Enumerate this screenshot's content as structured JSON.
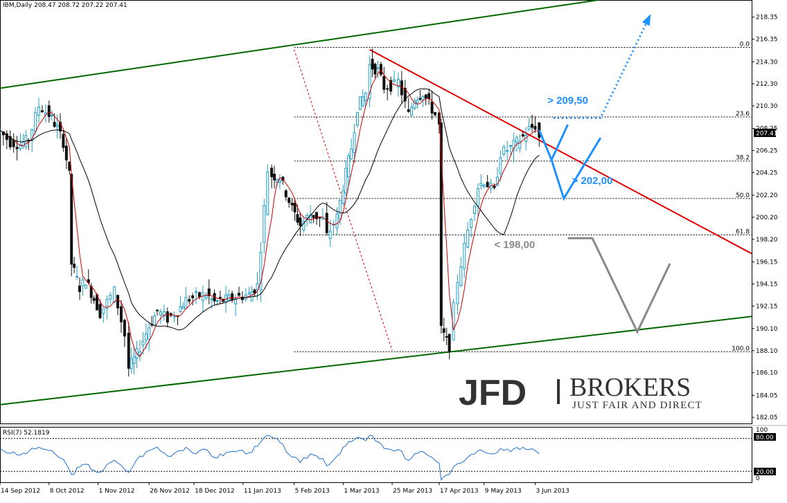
{
  "chart_data": [
    {
      "type": "candlestick",
      "header": "IBM,Daily  208.47 208.72 207.22 207.41",
      "symbol": "IBM",
      "timeframe": "Daily",
      "ohlc_header": {
        "open": 208.47,
        "high": 208.72,
        "low": 207.22,
        "close": 207.41
      },
      "last_price_label": "207.41",
      "last_price": 207.41,
      "ylim": [
        181.5,
        219.9
      ],
      "y_ticks": [
        "218.35",
        "216.35",
        "214.30",
        "212.30",
        "210.30",
        "208.25",
        "206.25",
        "204.25",
        "202.20",
        "200.20",
        "198.20",
        "196.15",
        "194.15",
        "192.15",
        "190.10",
        "188.10",
        "186.10",
        "184.05",
        "182.05"
      ],
      "x_tick_labels": [
        {
          "date": "2012-09-14",
          "label": "14 Sep 2012"
        },
        {
          "date": "2012-10-08",
          "label": "8 Oct 2012"
        },
        {
          "date": "2012-11-01",
          "label": "1 Nov 2012"
        },
        {
          "date": "2012-11-26",
          "label": "26 Nov 2012"
        },
        {
          "date": "2012-12-18",
          "label": "18 Dec 2012"
        },
        {
          "date": "2013-01-11",
          "label": "11 Jan 2013"
        },
        {
          "date": "2013-02-05",
          "label": "5 Feb 2013"
        },
        {
          "date": "2013-03-01",
          "label": "1 Mar 2013"
        },
        {
          "date": "2013-03-25",
          "label": "25 Mar 2013"
        },
        {
          "date": "2013-04-17",
          "label": "17 Apr 2013"
        },
        {
          "date": "2013-05-09",
          "label": "9 May 2013"
        },
        {
          "date": "2013-06-03",
          "label": "3 Jun 2013"
        }
      ],
      "x_range": {
        "start": "2012-09-14",
        "end": "2013-09-17"
      },
      "close_series": [
        [
          "2012-09-14",
          208.0
        ],
        [
          "2012-09-19",
          207.0
        ],
        [
          "2012-09-24",
          206.8
        ],
        [
          "2012-09-28",
          207.3
        ],
        [
          "2012-10-03",
          210.3
        ],
        [
          "2012-10-08",
          209.5
        ],
        [
          "2012-10-12",
          208.3
        ],
        [
          "2012-10-15",
          207.0
        ],
        [
          "2012-10-18",
          204.0
        ],
        [
          "2012-10-19",
          196.0
        ],
        [
          "2012-10-23",
          193.8
        ],
        [
          "2012-10-26",
          194.5
        ],
        [
          "2012-10-30",
          192.8
        ],
        [
          "2012-11-02",
          191.5
        ],
        [
          "2012-11-07",
          193.0
        ],
        [
          "2012-11-09",
          193.5
        ],
        [
          "2012-11-14",
          189.5
        ],
        [
          "2012-11-16",
          186.5
        ],
        [
          "2012-11-20",
          187.8
        ],
        [
          "2012-11-26",
          190.3
        ],
        [
          "2012-11-30",
          191.7
        ],
        [
          "2012-12-05",
          191.0
        ],
        [
          "2012-12-10",
          191.7
        ],
        [
          "2012-12-14",
          192.7
        ],
        [
          "2012-12-19",
          193.0
        ],
        [
          "2012-12-24",
          193.2
        ],
        [
          "2012-12-28",
          192.5
        ],
        [
          "2013-01-04",
          192.8
        ],
        [
          "2013-01-09",
          193.0
        ],
        [
          "2013-01-14",
          193.2
        ],
        [
          "2013-01-18",
          194.0
        ],
        [
          "2013-01-23",
          204.5
        ],
        [
          "2013-01-25",
          204.0
        ],
        [
          "2013-01-29",
          203.8
        ],
        [
          "2013-02-04",
          201.0
        ],
        [
          "2013-02-08",
          199.5
        ],
        [
          "2013-02-13",
          200.5
        ],
        [
          "2013-02-19",
          200.0
        ],
        [
          "2013-02-21",
          198.5
        ],
        [
          "2013-02-26",
          200.2
        ],
        [
          "2013-03-01",
          203.0
        ],
        [
          "2013-03-05",
          206.5
        ],
        [
          "2013-03-08",
          210.2
        ],
        [
          "2013-03-12",
          211.5
        ],
        [
          "2013-03-14",
          214.0
        ],
        [
          "2013-03-18",
          213.5
        ],
        [
          "2013-03-21",
          212.0
        ],
        [
          "2013-03-26",
          212.2
        ],
        [
          "2013-03-28",
          212.5
        ],
        [
          "2013-04-02",
          209.5
        ],
        [
          "2013-04-05",
          211.0
        ],
        [
          "2013-04-09",
          211.5
        ],
        [
          "2013-04-12",
          210.5
        ],
        [
          "2013-04-15",
          209.5
        ],
        [
          "2013-04-17",
          208.5
        ],
        [
          "2013-04-18",
          190.0
        ],
        [
          "2013-04-22",
          188.5
        ],
        [
          "2013-04-24",
          192.0
        ],
        [
          "2013-04-26",
          194.5
        ],
        [
          "2013-05-01",
          199.0
        ],
        [
          "2013-05-06",
          203.0
        ],
        [
          "2013-05-09",
          203.5
        ],
        [
          "2013-05-14",
          202.5
        ],
        [
          "2013-05-17",
          206.0
        ],
        [
          "2013-05-22",
          206.5
        ],
        [
          "2013-05-28",
          207.5
        ],
        [
          "2013-05-31",
          208.2
        ],
        [
          "2013-06-03",
          208.5
        ],
        [
          "2013-06-05",
          207.4
        ]
      ],
      "ma_fast_name": "",
      "ma_slow_name": "",
      "trendlines": [
        {
          "name": "upper-channel",
          "color": "#006600",
          "p1": [
            "2012-09-14",
            211.9
          ],
          "p2": [
            "2013-07-04",
            219.9
          ]
        },
        {
          "name": "lower-channel",
          "color": "#006600",
          "p1": [
            "2012-09-14",
            183.2
          ],
          "p2": [
            "2013-09-17",
            191.2
          ]
        },
        {
          "name": "resistance-trendline",
          "color": "#e00000",
          "p1": [
            "2013-03-14",
            215.4
          ],
          "p2": [
            "2013-09-17",
            196.9
          ]
        },
        {
          "name": "fib-diagonal",
          "color": "#e00000",
          "dashed": true,
          "p1": [
            "2013-02-05",
            215.4
          ],
          "p2": [
            "2013-03-25",
            188.1
          ]
        }
      ],
      "fibonacci": {
        "start_date": "2013-02-05",
        "levels": [
          {
            "label": "0.0",
            "price": 215.6
          },
          {
            "label": "23.6",
            "price": 209.3
          },
          {
            "label": "38.2",
            "price": 205.3
          },
          {
            "label": "50.0",
            "price": 201.9
          },
          {
            "label": "61.8",
            "price": 198.6
          },
          {
            "label": "100.0",
            "price": 188.0
          }
        ]
      },
      "annotations": [
        {
          "text": "> 209,50",
          "color": "#1e90ff",
          "anchor": [
            "2013-06-09",
            210.5
          ]
        },
        {
          "text": "> 202,00",
          "color": "#1e90ff",
          "anchor": [
            "2013-06-21",
            203.2
          ]
        },
        {
          "text": "< 198,00",
          "color": "#888888",
          "anchor": [
            "2013-05-14",
            197.4
          ]
        }
      ],
      "scenario_paths": [
        {
          "name": "bull-v-path",
          "color": "#1e90ff",
          "dashed": false,
          "points": [
            [
              "2013-06-05",
              208.1
            ],
            [
              "2013-06-11",
              205.4
            ],
            [
              "2013-06-19",
              208.6
            ]
          ]
        },
        {
          "name": "deep-v-path",
          "color": "#1e90ff",
          "dashed": false,
          "points": [
            [
              "2013-06-11",
              205.4
            ],
            [
              "2013-06-17",
              201.9
            ],
            [
              "2013-07-05",
              207.4
            ]
          ]
        },
        {
          "name": "breakout-target-path",
          "color": "#1e90ff",
          "dashed": true,
          "points": [
            [
              "2013-06-12",
              209.2
            ],
            [
              "2013-07-05",
              209.2
            ],
            [
              "2013-07-29",
              218.4
            ]
          ]
        },
        {
          "name": "bear-target-path",
          "color": "#888888",
          "dashed": false,
          "points": [
            [
              "2013-06-19",
              198.3
            ],
            [
              "2013-07-01",
              198.3
            ],
            [
              "2013-07-23",
              189.8
            ],
            [
              "2013-08-08",
              196.0
            ]
          ]
        }
      ]
    },
    {
      "type": "line",
      "indicator": "RSI(7)",
      "label": "RSI(7) 52.1819",
      "current_value": 52.1819,
      "ylim": [
        0,
        100
      ],
      "levels": [
        {
          "label": "80.00",
          "value": 80
        },
        {
          "label": "20.00",
          "value": 20
        }
      ],
      "axis_labels": [
        "100",
        "0"
      ],
      "series": [
        [
          "2012-09-14",
          62
        ],
        [
          "2012-09-19",
          53
        ],
        [
          "2012-09-24",
          50
        ],
        [
          "2012-09-28",
          56
        ],
        [
          "2012-10-03",
          64
        ],
        [
          "2012-10-08",
          58
        ],
        [
          "2012-10-12",
          48
        ],
        [
          "2012-10-15",
          42
        ],
        [
          "2012-10-19",
          14
        ],
        [
          "2012-10-23",
          28
        ],
        [
          "2012-10-26",
          33
        ],
        [
          "2012-10-30",
          22
        ],
        [
          "2012-11-02",
          18
        ],
        [
          "2012-11-07",
          36
        ],
        [
          "2012-11-09",
          40
        ],
        [
          "2012-11-14",
          23
        ],
        [
          "2012-11-16",
          18
        ],
        [
          "2012-11-20",
          42
        ],
        [
          "2012-11-26",
          58
        ],
        [
          "2012-11-30",
          64
        ],
        [
          "2012-12-05",
          48
        ],
        [
          "2012-12-10",
          57
        ],
        [
          "2012-12-14",
          64
        ],
        [
          "2012-12-19",
          52
        ],
        [
          "2012-12-24",
          60
        ],
        [
          "2012-12-28",
          45
        ],
        [
          "2013-01-04",
          55
        ],
        [
          "2013-01-09",
          58
        ],
        [
          "2013-01-14",
          54
        ],
        [
          "2013-01-18",
          66
        ],
        [
          "2013-01-23",
          86
        ],
        [
          "2013-01-25",
          83
        ],
        [
          "2013-01-29",
          73
        ],
        [
          "2013-02-04",
          46
        ],
        [
          "2013-02-08",
          36
        ],
        [
          "2013-02-13",
          52
        ],
        [
          "2013-02-19",
          44
        ],
        [
          "2013-02-21",
          30
        ],
        [
          "2013-02-26",
          48
        ],
        [
          "2013-03-01",
          64
        ],
        [
          "2013-03-05",
          74
        ],
        [
          "2013-03-08",
          82
        ],
        [
          "2013-03-12",
          76
        ],
        [
          "2013-03-14",
          86
        ],
        [
          "2013-03-18",
          74
        ],
        [
          "2013-03-21",
          62
        ],
        [
          "2013-03-26",
          57
        ],
        [
          "2013-03-28",
          60
        ],
        [
          "2013-04-02",
          40
        ],
        [
          "2013-04-05",
          52
        ],
        [
          "2013-04-09",
          56
        ],
        [
          "2013-04-12",
          48
        ],
        [
          "2013-04-15",
          40
        ],
        [
          "2013-04-17",
          35
        ],
        [
          "2013-04-18",
          4
        ],
        [
          "2013-04-22",
          14
        ],
        [
          "2013-04-24",
          28
        ],
        [
          "2013-04-26",
          34
        ],
        [
          "2013-05-01",
          46
        ],
        [
          "2013-05-06",
          58
        ],
        [
          "2013-05-09",
          56
        ],
        [
          "2013-05-14",
          52
        ],
        [
          "2013-05-17",
          62
        ],
        [
          "2013-05-22",
          56
        ],
        [
          "2013-05-28",
          64
        ],
        [
          "2013-05-31",
          60
        ],
        [
          "2013-06-03",
          58
        ],
        [
          "2013-06-05",
          52
        ]
      ]
    }
  ],
  "branding": {
    "logo_main": "JFD",
    "logo_secondary": "BROKERS",
    "tagline": "JUST FAIR AND DIRECT"
  },
  "colors": {
    "bull_candle": "#20a0c8",
    "bear_candle": "#101010",
    "ma_fast": "#cc0000",
    "ma_slow": "#000000",
    "rsi_line": "#1e70d0",
    "accent_blue": "#1e90ff",
    "bear_gray": "#888888",
    "channel_green": "#006600"
  }
}
